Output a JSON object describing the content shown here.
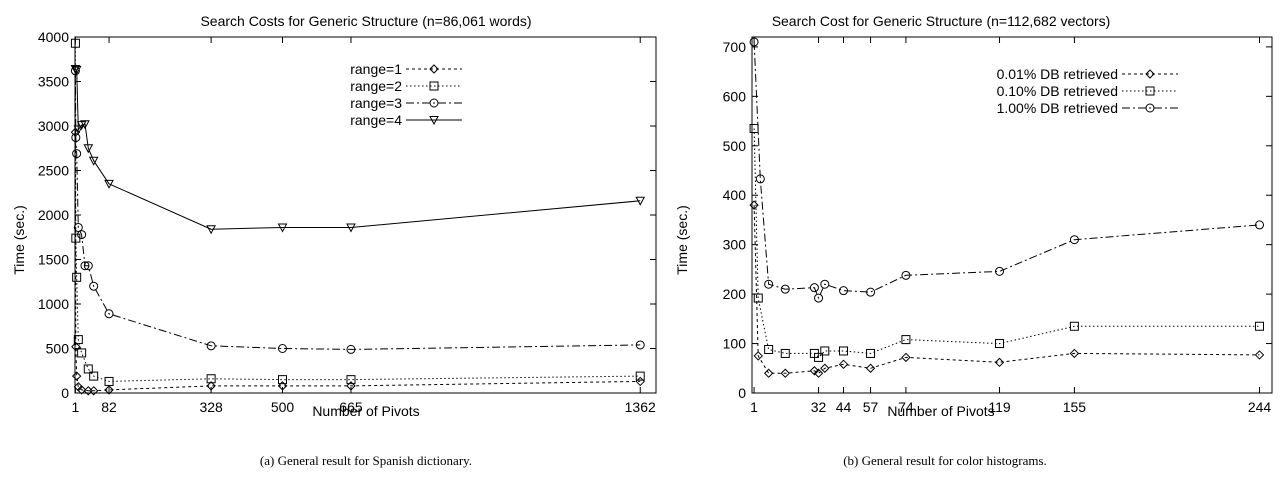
{
  "chart_data": [
    {
      "type": "line",
      "title": "Search Costs for Generic Structure (n=86,061 words)",
      "xlabel": "Number of Pivots",
      "ylabel": "Time (sec.)",
      "caption": "(a) General result for Spanish dictionary.",
      "xlim": [
        0,
        1400
      ],
      "ylim": [
        0,
        4000
      ],
      "xticks": [
        1,
        82,
        328,
        500,
        665,
        1362
      ],
      "yticks": [
        0,
        500,
        1000,
        1500,
        2000,
        2500,
        3000,
        3500,
        4000
      ],
      "legend_position": "top-right",
      "series": [
        {
          "name": "range=1",
          "marker": "diamond",
          "dash": "3,3",
          "x": [
            1,
            2,
            4,
            8,
            16,
            32,
            45,
            82,
            328,
            500,
            665,
            1362
          ],
          "y": [
            2930,
            520,
            190,
            70,
            35,
            25,
            25,
            35,
            80,
            80,
            80,
            130
          ]
        },
        {
          "name": "range=2",
          "marker": "square",
          "dash": "1.5,2.5",
          "x": [
            1,
            2,
            4,
            8,
            16,
            32,
            45,
            82,
            328,
            500,
            665,
            1362
          ],
          "y": [
            3930,
            1740,
            1300,
            600,
            450,
            270,
            190,
            130,
            160,
            150,
            150,
            190
          ]
        },
        {
          "name": "range=3",
          "marker": "circle",
          "dash": "8,3,2,3",
          "x": [
            1,
            2,
            4,
            8,
            16,
            24,
            32,
            45,
            82,
            328,
            500,
            665,
            1362
          ],
          "y": [
            3620,
            2870,
            2690,
            1860,
            1780,
            1430,
            1430,
            1200,
            890,
            530,
            500,
            490,
            540
          ]
        },
        {
          "name": "range=4",
          "marker": "triangle-down",
          "dash": "",
          "x": [
            1,
            4,
            8,
            16,
            24,
            32,
            45,
            82,
            328,
            500,
            665,
            1362
          ],
          "y": [
            3640,
            3630,
            2960,
            3010,
            3020,
            2750,
            2610,
            2350,
            1840,
            1860,
            1860,
            2160
          ]
        }
      ]
    },
    {
      "type": "line",
      "title": "Search Cost for Generic Structure (n=112,682 vectors)",
      "xlabel": "Number of Pivots",
      "ylabel": "Time (sec.)",
      "caption": "(b) General result for color histograms.",
      "xlim": [
        0,
        250
      ],
      "ylim": [
        0,
        720
      ],
      "xticks": [
        1,
        32,
        44,
        57,
        74,
        119,
        155,
        244
      ],
      "yticks": [
        0,
        100,
        200,
        300,
        400,
        500,
        600,
        700
      ],
      "legend_position": "top-right",
      "series": [
        {
          "name": "0.01% DB retrieved",
          "marker": "diamond",
          "dash": "3,3",
          "x": [
            1,
            3,
            8,
            16,
            30,
            32,
            35,
            44,
            57,
            74,
            119,
            155,
            244
          ],
          "y": [
            380,
            75,
            40,
            40,
            45,
            40,
            50,
            58,
            50,
            72,
            62,
            80,
            77
          ]
        },
        {
          "name": "0.10% DB retrieved",
          "marker": "square",
          "dash": "1.5,2.5",
          "x": [
            1,
            3,
            8,
            16,
            30,
            32,
            35,
            44,
            57,
            74,
            119,
            155,
            244
          ],
          "y": [
            535,
            192,
            88,
            80,
            80,
            72,
            85,
            85,
            80,
            108,
            100,
            135,
            135
          ]
        },
        {
          "name": "1.00% DB retrieved",
          "marker": "circle",
          "dash": "8,3,2,3",
          "x": [
            1,
            4,
            8,
            16,
            30,
            32,
            35,
            44,
            57,
            74,
            119,
            155,
            244
          ],
          "y": [
            710,
            433,
            220,
            210,
            213,
            192,
            220,
            207,
            204,
            238,
            246,
            310,
            340
          ]
        }
      ]
    }
  ]
}
